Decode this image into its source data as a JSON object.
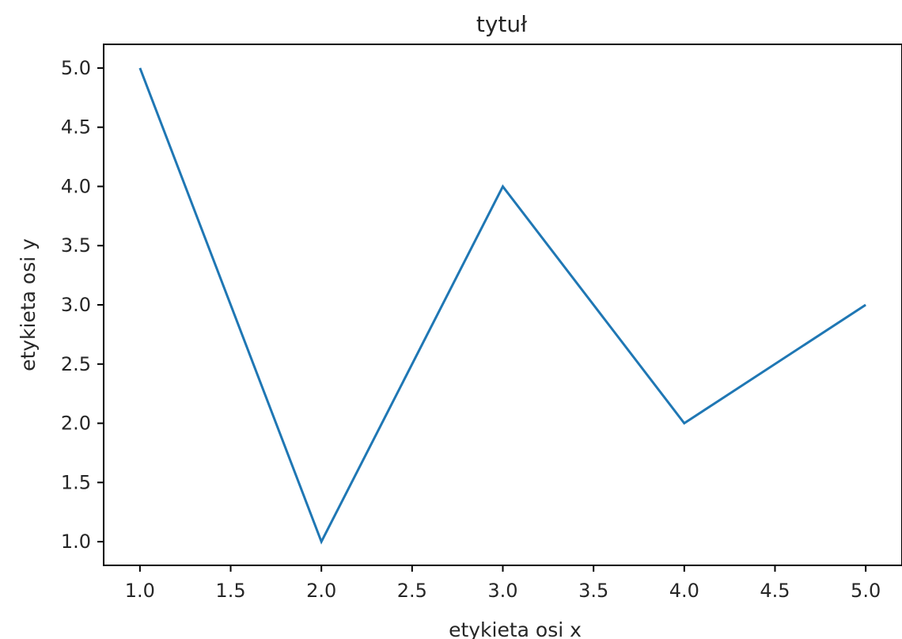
{
  "chart_data": {
    "type": "line",
    "title": "tytuł",
    "xlabel": "etykieta osi x",
    "ylabel": "etykieta osi y",
    "x": [
      1.0,
      2.0,
      3.0,
      4.0,
      5.0
    ],
    "series": [
      {
        "values": [
          5.0,
          1.0,
          4.0,
          2.0,
          3.0
        ],
        "color": "#1f77b4"
      }
    ],
    "xlim": [
      0.8,
      5.2
    ],
    "ylim": [
      0.8,
      5.2
    ],
    "x_ticks": [
      1.0,
      1.5,
      2.0,
      2.5,
      3.0,
      3.5,
      4.0,
      4.5,
      5.0
    ],
    "x_tick_labels": [
      "1.0",
      "1.5",
      "2.0",
      "2.5",
      "3.0",
      "3.5",
      "4.0",
      "4.5",
      "5.0"
    ],
    "y_ticks": [
      1.0,
      1.5,
      2.0,
      2.5,
      3.0,
      3.5,
      4.0,
      4.5,
      5.0
    ],
    "y_tick_labels": [
      "1.0",
      "1.5",
      "2.0",
      "2.5",
      "3.0",
      "3.5",
      "4.0",
      "4.5",
      "5.0"
    ],
    "grid": false,
    "legend": false
  }
}
